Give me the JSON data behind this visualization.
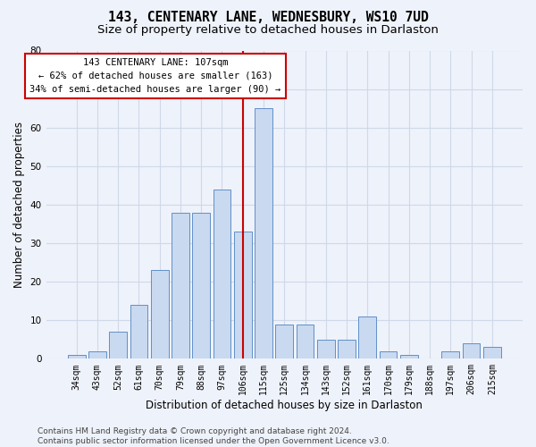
{
  "title": "143, CENTENARY LANE, WEDNESBURY, WS10 7UD",
  "subtitle": "Size of property relative to detached houses in Darlaston",
  "xlabel": "Distribution of detached houses by size in Darlaston",
  "ylabel": "Number of detached properties",
  "categories": [
    "34sqm",
    "43sqm",
    "52sqm",
    "61sqm",
    "70sqm",
    "79sqm",
    "88sqm",
    "97sqm",
    "106sqm",
    "115sqm",
    "125sqm",
    "134sqm",
    "143sqm",
    "152sqm",
    "161sqm",
    "170sqm",
    "179sqm",
    "188sqm",
    "197sqm",
    "206sqm",
    "215sqm"
  ],
  "values": [
    1,
    2,
    7,
    14,
    23,
    38,
    38,
    44,
    33,
    65,
    9,
    9,
    5,
    5,
    11,
    2,
    1,
    0,
    2,
    4,
    3
  ],
  "bar_color": "#c9d9f0",
  "bar_edge_color": "#6090c8",
  "highlight_index": 8,
  "highlight_line_color": "#cc0000",
  "annotation_text": "143 CENTENARY LANE: 107sqm\n← 62% of detached houses are smaller (163)\n34% of semi-detached houses are larger (90) →",
  "annotation_box_color": "#ffffff",
  "annotation_box_edge_color": "#cc0000",
  "ylim": [
    0,
    80
  ],
  "yticks": [
    0,
    10,
    20,
    30,
    40,
    50,
    60,
    70,
    80
  ],
  "grid_color": "#d0d8e8",
  "footer_text": "Contains HM Land Registry data © Crown copyright and database right 2024.\nContains public sector information licensed under the Open Government Licence v3.0.",
  "bg_color": "#eef2fa",
  "title_fontsize": 10.5,
  "subtitle_fontsize": 9.5,
  "annot_fontsize": 7.5,
  "tick_fontsize": 7,
  "ylabel_fontsize": 8.5,
  "xlabel_fontsize": 8.5,
  "footer_fontsize": 6.5
}
